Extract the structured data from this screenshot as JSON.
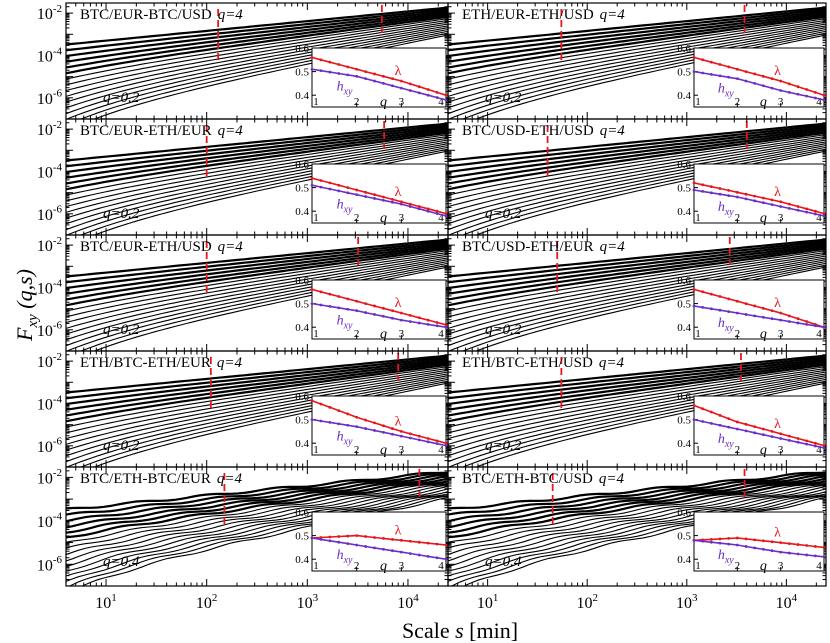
{
  "figure": {
    "ylabel": "F",
    "ylabel_sub": "xy",
    "ylabel_args": " (q,s)",
    "xlabel": "Scale ",
    "xlabel_var": "s",
    "xlabel_unit": " [min]"
  },
  "chart_data": {
    "type": "line",
    "layout": "5x2 grid of log-log panels with inset line charts",
    "x_axis": {
      "scale": "log",
      "range": [
        4,
        25000
      ],
      "tick_labels": [
        "10^1",
        "10^2",
        "10^3",
        "10^4"
      ]
    },
    "y_axis": {
      "scale": "log",
      "range": [
        1e-07,
        0.03
      ],
      "tick_labels": [
        "10^-2",
        "10^-4",
        "10^-6"
      ]
    },
    "q_max_label": "q=4",
    "inset": {
      "x_range": [
        1,
        4
      ],
      "y_range": [
        0.35,
        0.6
      ],
      "x_tick_labels": [
        "1",
        "2",
        "3",
        "4"
      ],
      "y_tick_labels": [
        "0.4",
        "0.5",
        "0.6"
      ],
      "x_label": "q",
      "series_names": [
        "λ",
        "h"
      ],
      "h_subscript": "xy",
      "colors": {
        "lambda": "#e8151b",
        "h": "#6a2fc8"
      }
    },
    "panels": [
      {
        "title": "BTC/EUR-BTC/USD",
        "q_min_label": "q=0.2",
        "q_min": 0.2,
        "crossovers": [
          130,
          5500
        ],
        "lambda": [
          0.56,
          0.51,
          0.46,
          0.4
        ],
        "h": [
          0.51,
          0.48,
          0.43,
          0.38
        ]
      },
      {
        "title": "ETH/EUR-ETH/USD",
        "q_min_label": "q=0.2",
        "q_min": 0.2,
        "crossovers": [
          55,
          3800
        ],
        "lambda": [
          0.56,
          0.51,
          0.46,
          0.4
        ],
        "h": [
          0.5,
          0.47,
          0.42,
          0.38
        ]
      },
      {
        "title": "BTC/EUR-ETH/EUR",
        "q_min_label": "q=0.2",
        "q_min": 0.2,
        "crossovers": [
          100,
          5800
        ],
        "lambda": [
          0.54,
          0.49,
          0.44,
          0.39
        ],
        "h": [
          0.51,
          0.47,
          0.43,
          0.38
        ]
      },
      {
        "title": "BTC/USD-ETH/USD",
        "q_min_label": "q=0.2",
        "q_min": 0.2,
        "crossovers": [
          40,
          4000
        ],
        "lambda": [
          0.52,
          0.48,
          0.44,
          0.39
        ],
        "h": [
          0.49,
          0.46,
          0.42,
          0.38
        ]
      },
      {
        "title": "BTC/EUR-ETH/USD",
        "q_min_label": "q=0.2",
        "q_min": 0.2,
        "crossovers": [
          100,
          3200
        ],
        "lambda": [
          0.56,
          0.51,
          0.46,
          0.41
        ],
        "h": [
          0.5,
          0.47,
          0.43,
          0.4
        ]
      },
      {
        "title": "BTC/USD-ETH/EUR",
        "q_min_label": "q=0.2",
        "q_min": 0.2,
        "crossovers": [
          50,
          2700
        ],
        "lambda": [
          0.56,
          0.51,
          0.46,
          0.4
        ],
        "h": [
          0.49,
          0.46,
          0.43,
          0.4
        ]
      },
      {
        "title": "ETH/BTC-ETH/EUR",
        "q_min_label": "q=0.2",
        "q_min": 0.2,
        "crossovers": [
          110,
          8000
        ],
        "lambda": [
          0.58,
          0.51,
          0.45,
          0.4
        ],
        "h": [
          0.5,
          0.47,
          0.43,
          0.39
        ]
      },
      {
        "title": "ETH/BTC-ETH/USD",
        "q_min_label": "q=0.2",
        "q_min": 0.2,
        "crossovers": [
          55,
          3500
        ],
        "lambda": [
          0.56,
          0.49,
          0.44,
          0.39
        ],
        "h": [
          0.5,
          0.46,
          0.42,
          0.38
        ]
      },
      {
        "title": "BTC/ETH-BTC/EUR",
        "q_min_label": "q=0.4",
        "q_min": 0.4,
        "crossovers": [
          150,
          13000
        ],
        "lambda": [
          0.49,
          0.5,
          0.48,
          0.46
        ],
        "h": [
          0.49,
          0.46,
          0.43,
          0.4
        ]
      },
      {
        "title": "BTC/ETH-BTC/USD",
        "q_min_label": "q=0.4",
        "q_min": 0.4,
        "crossovers": [
          45,
          3800
        ],
        "lambda": [
          0.48,
          0.49,
          0.47,
          0.45
        ],
        "h": [
          0.48,
          0.46,
          0.43,
          0.41
        ]
      }
    ]
  }
}
